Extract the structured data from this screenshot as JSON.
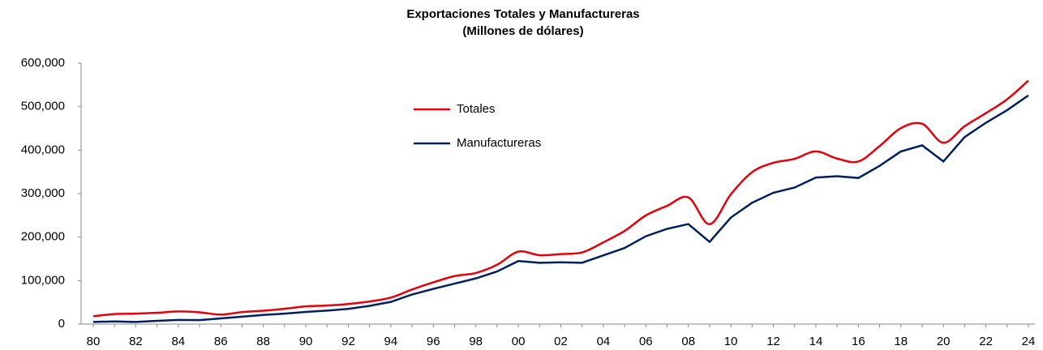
{
  "chart_data": {
    "type": "line",
    "title": "Exportaciones Totales y Manufactureras",
    "subtitle": "(Millones de dólares)",
    "categories": [
      "80",
      null,
      "82",
      null,
      "84",
      null,
      "86",
      null,
      "88",
      null,
      "90",
      null,
      "92",
      null,
      "94",
      null,
      "96",
      null,
      "98",
      null,
      "00",
      null,
      "02",
      null,
      "04",
      null,
      "06",
      null,
      "08",
      null,
      "10",
      null,
      "12",
      null,
      "14",
      null,
      "16",
      null,
      "18",
      null,
      "20",
      null,
      "22",
      null,
      "24"
    ],
    "series": [
      {
        "name": "Totales",
        "color": "#e8000b",
        "smooth": true,
        "values": [
          18000,
          23000,
          24000,
          26000,
          29000,
          27000,
          21800,
          27600,
          30700,
          35200,
          40700,
          42700,
          46200,
          51900,
          60900,
          79500,
          96000,
          110400,
          117500,
          136400,
          166500,
          158400,
          161000,
          164800,
          187900,
          214200,
          249900,
          271900,
          291300,
          229700,
          298500,
          349400,
          370900,
          380000,
          397100,
          380600,
          374000,
          409400,
          450700,
          460600,
          417000,
          455000,
          485000,
          517000,
          560000
        ]
      },
      {
        "name": "Manufactureras",
        "color": "#002060",
        "smooth": false,
        "values": [
          5000,
          6000,
          5000,
          7500,
          9500,
          9000,
          13000,
          17000,
          21000,
          24000,
          28000,
          31000,
          35000,
          42000,
          51000,
          68000,
          81000,
          93000,
          105000,
          121000,
          145000,
          141000,
          142000,
          141000,
          158000,
          175000,
          202000,
          219000,
          230000,
          189000,
          245000,
          279000,
          302000,
          314000,
          337000,
          340000,
          336000,
          364000,
          397000,
          411000,
          374000,
          430000,
          463000,
          492000,
          526000
        ]
      }
    ],
    "ylim": [
      0,
      600000
    ],
    "yticks": [
      0,
      {
        "value": 100000,
        "label": "100,000"
      },
      {
        "value": 200000,
        "label": "200,000"
      },
      {
        "value": 300000,
        "label": "300,000"
      },
      {
        "value": 400000,
        "label": "400,000"
      },
      {
        "value": 500000,
        "label": "500,000"
      },
      {
        "value": 600000,
        "label": "600,000"
      }
    ],
    "grid": false
  }
}
